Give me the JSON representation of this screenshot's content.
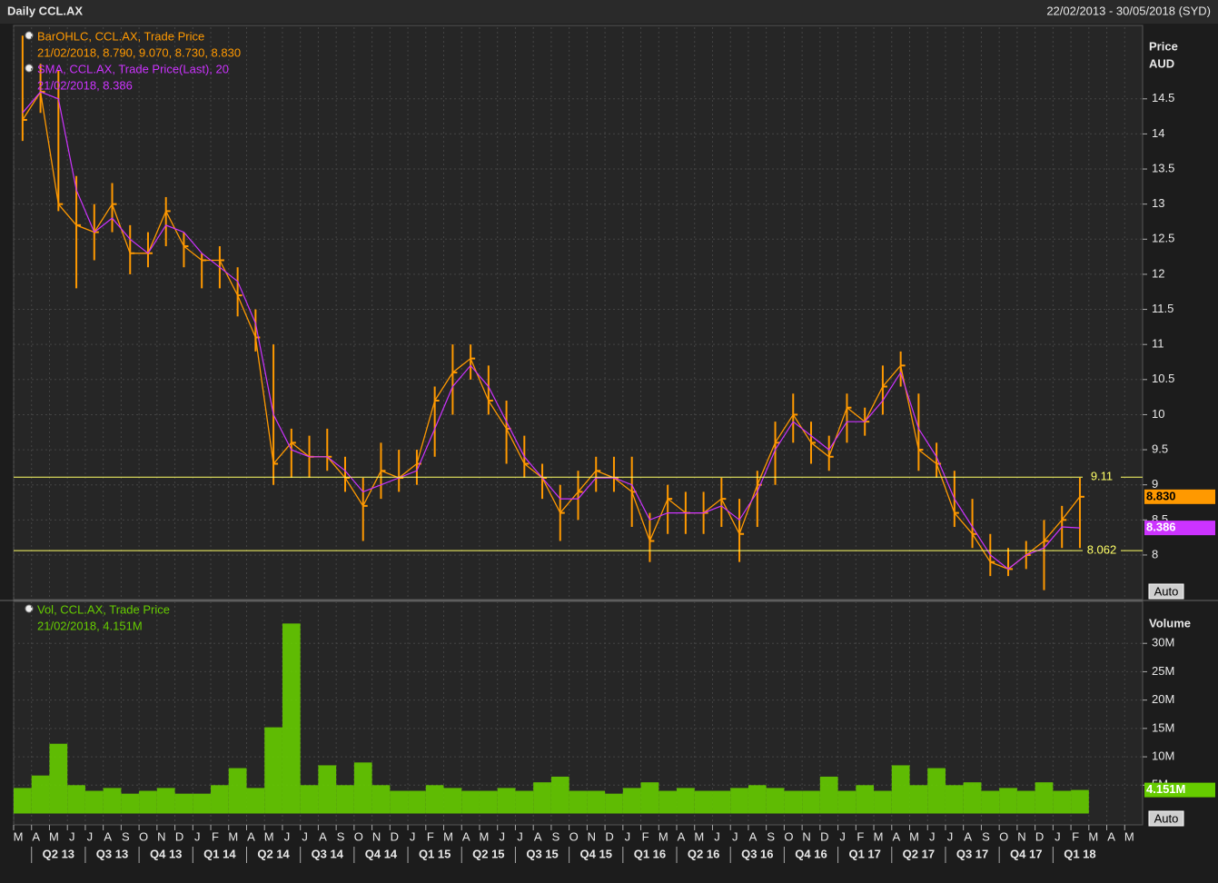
{
  "header": {
    "title": "Daily CCL.AX",
    "range": "22/02/2013 - 30/05/2018 (SYD)"
  },
  "chart_data": [
    {
      "type": "ohlc",
      "ylabel": "Price",
      "yunit": "AUD",
      "scale_button": "Auto",
      "ylim": [
        7.365,
        15.52
      ],
      "yticks": [
        8,
        8.5,
        9,
        9.5,
        10,
        10.5,
        11,
        11.5,
        12,
        12.5,
        13,
        13.5,
        14,
        14.5
      ],
      "grid": true,
      "hlines": [
        9.11,
        8.062
      ],
      "hline_color": "#ffff66",
      "series": [
        {
          "name": "BarOHLC, CCL.AX, Trade Price",
          "detail": "21/02/2018, 8.790, 9.070, 8.730, 8.830",
          "color": "#ff9900",
          "tag": "8.830",
          "high": [
            15.4,
            15.0,
            14.9,
            13.4,
            13.0,
            13.3,
            12.7,
            12.6,
            13.1,
            12.6,
            12.3,
            12.4,
            12.1,
            11.5,
            11.0,
            9.8,
            9.7,
            9.8,
            9.4,
            9.1,
            9.6,
            9.5,
            9.5,
            10.4,
            11.0,
            11.0,
            10.7,
            10.2,
            9.7,
            9.3,
            9.0,
            9.2,
            9.4,
            9.4,
            9.4,
            8.6,
            9.0,
            8.9,
            8.9,
            9.1,
            8.8,
            9.2,
            9.9,
            10.3,
            9.9,
            9.7,
            10.3,
            10.1,
            10.7,
            10.9,
            10.3,
            9.6,
            9.2,
            8.8,
            8.3,
            8.1,
            8.2,
            8.5,
            8.7,
            9.1,
            null,
            null,
            null
          ],
          "low": [
            13.9,
            14.3,
            12.9,
            11.8,
            12.2,
            12.6,
            12.0,
            12.1,
            12.4,
            12.1,
            11.8,
            11.8,
            11.4,
            10.9,
            9.0,
            9.1,
            9.1,
            9.2,
            8.9,
            8.2,
            8.8,
            8.9,
            9.0,
            9.4,
            10.0,
            10.5,
            10.0,
            9.3,
            9.1,
            8.8,
            8.2,
            8.5,
            8.9,
            8.9,
            8.4,
            7.9,
            8.3,
            8.3,
            8.3,
            8.4,
            7.9,
            8.4,
            9.0,
            9.6,
            9.3,
            9.2,
            9.6,
            9.7,
            10.0,
            10.4,
            9.2,
            9.1,
            8.4,
            8.1,
            7.7,
            7.7,
            7.8,
            7.5,
            8.1,
            8.1,
            null,
            null,
            null
          ],
          "values": [
            14.2,
            14.6,
            13.0,
            12.7,
            12.6,
            13.0,
            12.3,
            12.3,
            12.9,
            12.4,
            12.2,
            12.2,
            11.7,
            11.1,
            9.3,
            9.6,
            9.4,
            9.4,
            9.1,
            8.7,
            9.2,
            9.1,
            9.3,
            10.2,
            10.6,
            10.8,
            10.2,
            9.8,
            9.3,
            9.1,
            8.6,
            8.9,
            9.2,
            9.1,
            8.9,
            8.2,
            8.8,
            8.6,
            8.6,
            8.8,
            8.3,
            9.0,
            9.6,
            10.0,
            9.6,
            9.4,
            10.1,
            9.9,
            10.4,
            10.7,
            9.5,
            9.3,
            8.6,
            8.3,
            7.9,
            7.8,
            8.0,
            8.2,
            8.5,
            8.83,
            null,
            null,
            null
          ]
        },
        {
          "name": "SMA, CCL.AX, Trade Price(Last),  20",
          "detail": "21/02/2018, 8.386",
          "color": "#cc33ff",
          "tag": "8.386",
          "values": [
            14.3,
            14.6,
            14.5,
            13.2,
            12.6,
            12.8,
            12.5,
            12.3,
            12.7,
            12.6,
            12.3,
            12.1,
            11.9,
            11.3,
            10.0,
            9.5,
            9.4,
            9.4,
            9.2,
            8.9,
            9.0,
            9.1,
            9.2,
            9.8,
            10.4,
            10.7,
            10.4,
            9.9,
            9.4,
            9.1,
            8.8,
            8.8,
            9.1,
            9.1,
            9.0,
            8.5,
            8.6,
            8.6,
            8.6,
            8.7,
            8.5,
            8.9,
            9.5,
            9.9,
            9.7,
            9.5,
            9.9,
            9.9,
            10.2,
            10.6,
            9.8,
            9.4,
            8.8,
            8.4,
            8.0,
            7.8,
            8.0,
            8.1,
            8.4,
            8.386,
            null,
            null,
            null
          ]
        }
      ]
    },
    {
      "type": "bar",
      "ylabel": "Volume",
      "scale_button": "Auto",
      "categories": [
        "M",
        "A",
        "M",
        "J",
        "J",
        "A",
        "S",
        "O",
        "N",
        "D",
        "J",
        "F",
        "M",
        "A",
        "M",
        "J",
        "J",
        "A",
        "S",
        "O",
        "N",
        "D",
        "J",
        "F",
        "M",
        "A",
        "M",
        "J",
        "J",
        "A",
        "S",
        "O",
        "N",
        "D",
        "J",
        "F",
        "M",
        "A",
        "M",
        "J",
        "J",
        "A",
        "S",
        "O",
        "N",
        "D",
        "J",
        "F",
        "M",
        "A",
        "M",
        "J",
        "J",
        "A",
        "S",
        "O",
        "N",
        "D",
        "J",
        "F",
        "M",
        "A",
        "M"
      ],
      "quarters": [
        "Q2 13",
        "Q3 13",
        "Q4 13",
        "Q1 14",
        "Q2 14",
        "Q3 14",
        "Q4 14",
        "Q1 15",
        "Q2 15",
        "Q3 15",
        "Q4 15",
        "Q1 16",
        "Q2 16",
        "Q3 16",
        "Q4 16",
        "Q1 17",
        "Q2 17",
        "Q3 17",
        "Q4 17",
        "Q1 18"
      ],
      "ylim": [
        -2000000,
        37400000
      ],
      "yticks": [
        {
          "value": 5000000,
          "label": "5M"
        },
        {
          "value": 10000000,
          "label": "10M"
        },
        {
          "value": 15000000,
          "label": "15M"
        },
        {
          "value": 20000000,
          "label": "20M"
        },
        {
          "value": 25000000,
          "label": "25M"
        },
        {
          "value": 30000000,
          "label": "30M"
        }
      ],
      "grid": true,
      "series": [
        {
          "name": "Vol, CCL.AX, Trade Price",
          "detail": "21/02/2018, 4.151M",
          "color": "#66cc00",
          "tag": "4.151M",
          "values": [
            4500000,
            6700000,
            12300000,
            5000000,
            4000000,
            4500000,
            3500000,
            4000000,
            4500000,
            3500000,
            3500000,
            5000000,
            8000000,
            4500000,
            15200000,
            33500000,
            5000000,
            8500000,
            5000000,
            9000000,
            5000000,
            4000000,
            4000000,
            5000000,
            4500000,
            4000000,
            4000000,
            4500000,
            4000000,
            5500000,
            6500000,
            4000000,
            4000000,
            3500000,
            4500000,
            5500000,
            4000000,
            4500000,
            4000000,
            4000000,
            4500000,
            5000000,
            4500000,
            4000000,
            4000000,
            6500000,
            4000000,
            5000000,
            4000000,
            8500000,
            5000000,
            8000000,
            5000000,
            5500000,
            4000000,
            4500000,
            4000000,
            5500000,
            4000000,
            4151000,
            null,
            null,
            null
          ]
        }
      ]
    }
  ]
}
